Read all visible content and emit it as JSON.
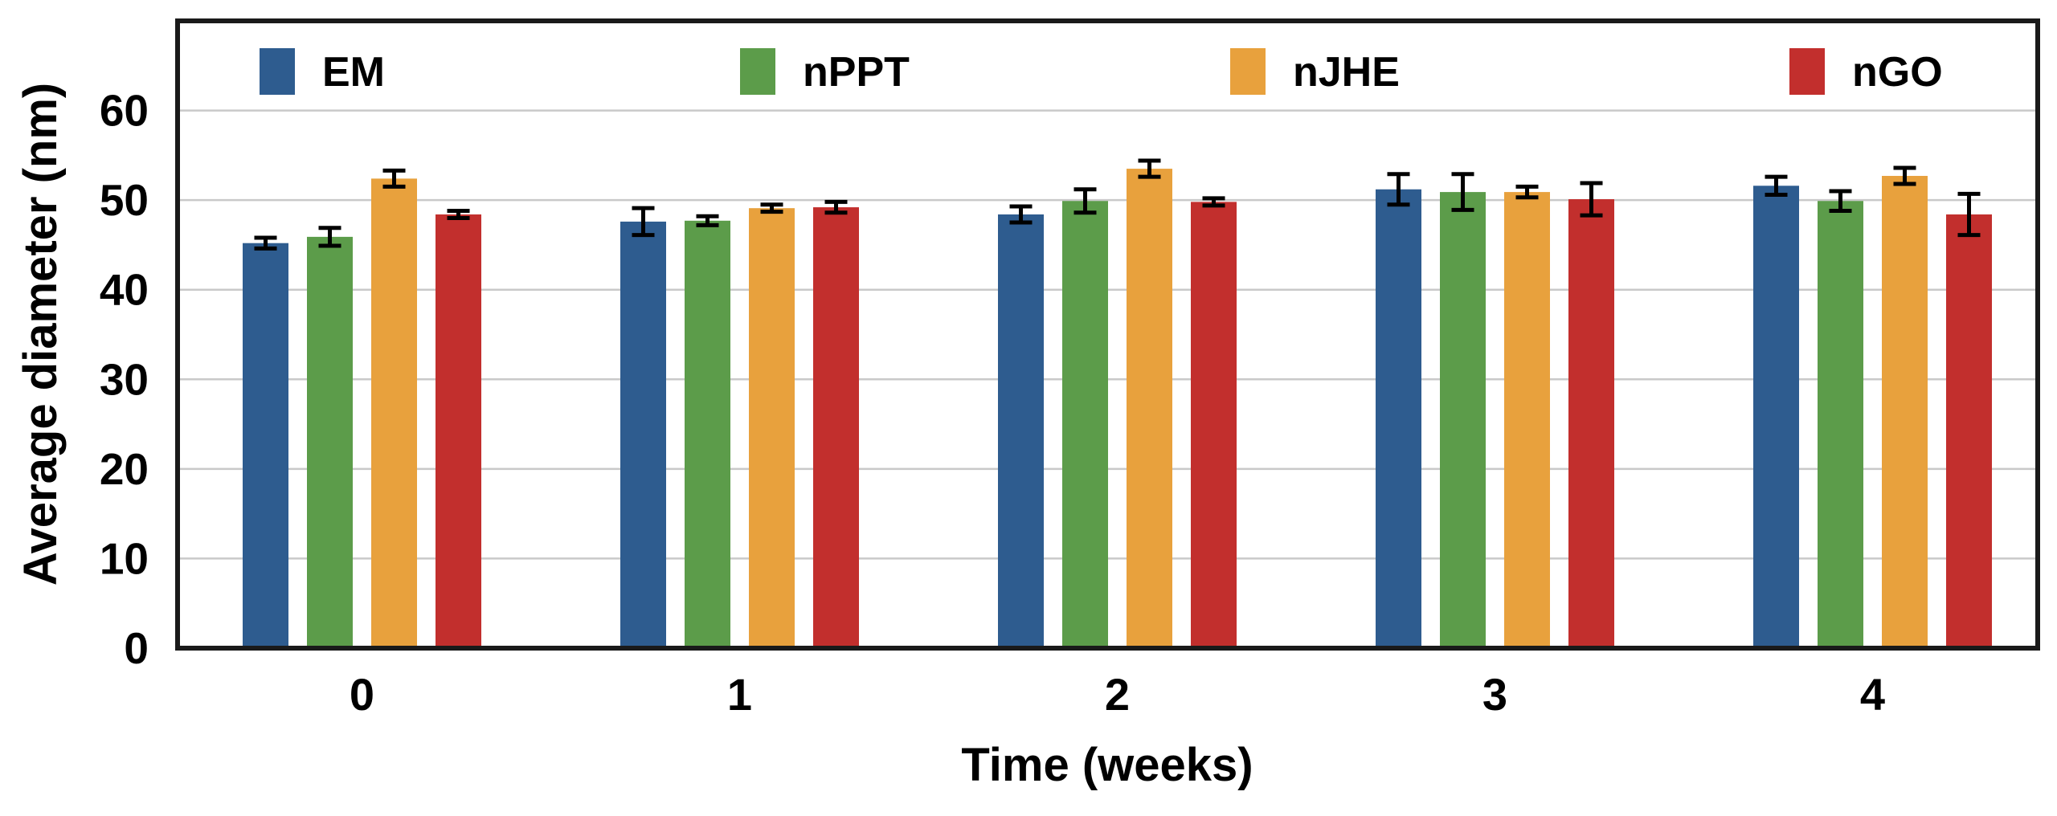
{
  "chart_data": {
    "type": "bar",
    "title": "",
    "xlabel": "Time (weeks)",
    "ylabel": "Average diameter (nm)",
    "categories": [
      "0",
      "1",
      "2",
      "3",
      "4"
    ],
    "series": [
      {
        "name": "EM",
        "color": "#2E5C8F",
        "values": [
          45.2,
          47.6,
          48.4,
          51.2,
          51.6
        ],
        "errors": [
          0.6,
          1.5,
          0.9,
          1.7,
          1.0
        ]
      },
      {
        "name": "nPPT",
        "color": "#5C9C4A",
        "values": [
          45.9,
          47.7,
          49.9,
          50.9,
          49.9
        ],
        "errors": [
          1.0,
          0.5,
          1.3,
          2.0,
          1.1
        ]
      },
      {
        "name": "nJHE",
        "color": "#E8A13D",
        "values": [
          52.4,
          49.1,
          53.5,
          50.9,
          52.7
        ],
        "errors": [
          0.9,
          0.4,
          0.9,
          0.6,
          0.9
        ]
      },
      {
        "name": "nGO",
        "color": "#C22F2D",
        "values": [
          48.4,
          49.2,
          49.8,
          50.1,
          48.4
        ],
        "errors": [
          0.4,
          0.6,
          0.4,
          1.8,
          2.3
        ]
      }
    ],
    "yticks": [
      0,
      10,
      20,
      30,
      40,
      50,
      60
    ],
    "ylim": [
      0,
      70
    ],
    "grid": "horizontal",
    "gridline_color": "#c9c9c9",
    "frame_color": "#1a1a1a",
    "error_bar_color": "#000000",
    "text_color": "#000000",
    "legend_position": "top-inside-row"
  }
}
